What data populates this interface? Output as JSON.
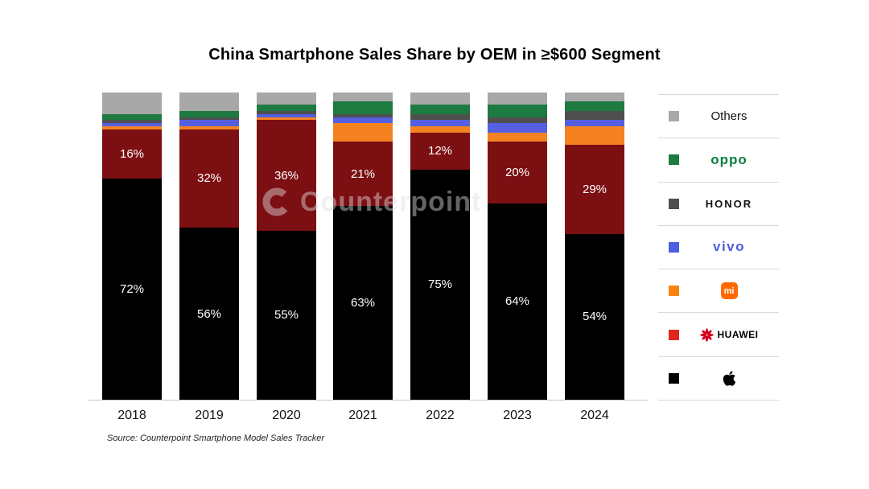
{
  "title": "China Smartphone Sales Share by OEM in ≥$600 Segment",
  "source": "Source: Counterpoint Smartphone Model Sales Tracker",
  "watermark": "Counterpoint",
  "chart_data": {
    "type": "bar",
    "stacked": true,
    "unit": "%",
    "ylim": [
      0,
      100
    ],
    "grid": false,
    "legend_position": "right",
    "categories": [
      "2018",
      "2019",
      "2020",
      "2021",
      "2022",
      "2023",
      "2024"
    ],
    "series": [
      {
        "name": "Apple",
        "color": "#000000",
        "show_labels": true,
        "values": [
          72,
          56,
          55,
          63,
          75,
          64,
          54
        ]
      },
      {
        "name": "HUAWEI",
        "color": "#7c0f12",
        "show_labels": true,
        "values": [
          16,
          32,
          36,
          21,
          12,
          20,
          29
        ]
      },
      {
        "name": "Mi",
        "color": "#f58220",
        "show_labels": false,
        "values": [
          1,
          1,
          1,
          6,
          2,
          3,
          6
        ]
      },
      {
        "name": "vivo",
        "color": "#5560e1",
        "show_labels": false,
        "values": [
          1,
          2,
          1,
          2,
          2,
          3,
          2
        ]
      },
      {
        "name": "HONOR",
        "color": "#4f4f4f",
        "show_labels": false,
        "values": [
          1,
          1,
          1,
          1,
          2,
          2,
          3
        ]
      },
      {
        "name": "OPPO",
        "color": "#1d7a41",
        "show_labels": false,
        "values": [
          2,
          2,
          2,
          4,
          3,
          4,
          3
        ]
      },
      {
        "name": "Others",
        "color": "#a8a8a8",
        "show_labels": false,
        "values": [
          7,
          6,
          4,
          3,
          4,
          4,
          3
        ]
      }
    ]
  },
  "legend": {
    "items": [
      {
        "id": "others",
        "label": "Others",
        "swatch": "#a8a8a8"
      },
      {
        "id": "oppo",
        "label": "oppo",
        "swatch": "#1d7a41"
      },
      {
        "id": "honor",
        "label": "HONOR",
        "swatch": "#4f4f4f"
      },
      {
        "id": "vivo",
        "label": "vivo",
        "swatch": "#4b5fe0"
      },
      {
        "id": "mi",
        "label": "mi",
        "swatch": "#f9830f"
      },
      {
        "id": "huawei",
        "label": "HUAWEI",
        "swatch": "#e0261d"
      },
      {
        "id": "apple",
        "label": "",
        "swatch": "#000000"
      }
    ]
  }
}
